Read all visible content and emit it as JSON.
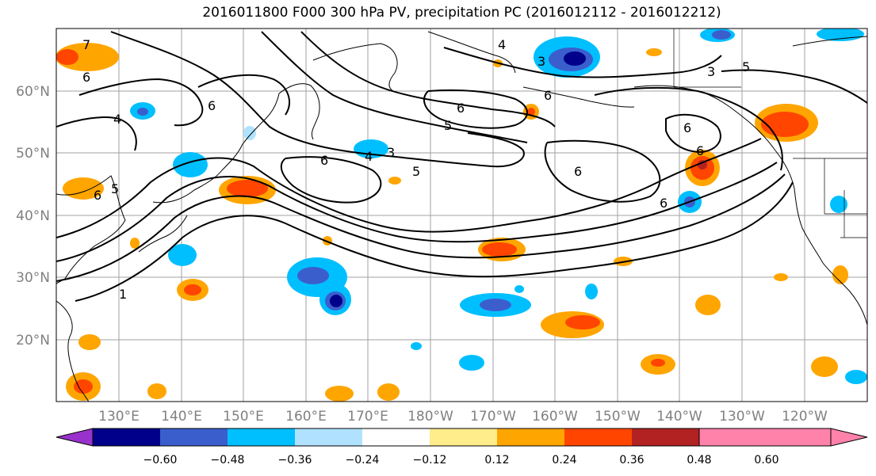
{
  "title": "2016011800 F000 300 hPa PV, precipitation PC (2016012112 - 2016012212)",
  "lat_labels": [
    "60°N",
    "50°N",
    "40°N",
    "30°N",
    "20°N"
  ],
  "lon_labels": [
    "130°E",
    "140°E",
    "150°E",
    "160°E",
    "170°E",
    "180°W",
    "170°W",
    "160°W",
    "150°W",
    "140°W",
    "130°W",
    "120°W"
  ],
  "colorbar": {
    "colors": [
      "#9932CC",
      "#00008B",
      "#3A5FCD",
      "#00BFFF",
      "#B0E2FF",
      "#FFFFFF",
      "#FFEC8B",
      "#FFA500",
      "#FF4500",
      "#B22222",
      "#FF82AB"
    ],
    "tick_labels": [
      "−0.60",
      "−0.48",
      "−0.36",
      "−0.24",
      "−0.12",
      "0.12",
      "0.24",
      "0.36",
      "0.48",
      "0.60"
    ]
  },
  "contour_labels": [
    "7",
    "6",
    "6",
    "4",
    "5",
    "6",
    "6",
    "4",
    "3",
    "5",
    "6",
    "5",
    "6",
    "3",
    "4",
    "5",
    "6",
    "6",
    "6",
    "6",
    "1",
    "3"
  ]
}
